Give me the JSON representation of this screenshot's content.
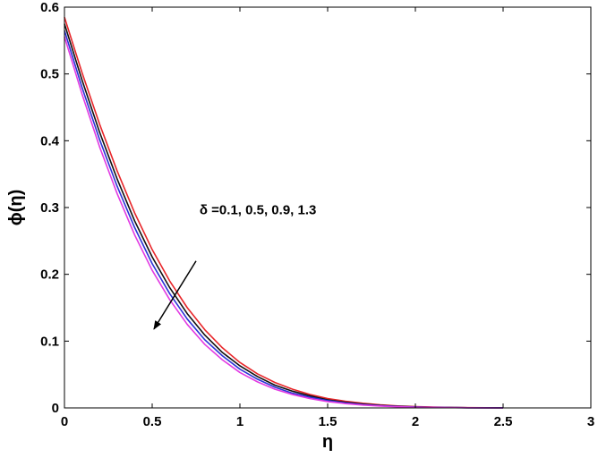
{
  "chart_data": {
    "type": "line",
    "xlabel": "η",
    "ylabel": "ϕ(η)",
    "xlim": [
      0,
      3
    ],
    "ylim": [
      0,
      0.6
    ],
    "xticks": [
      0,
      0.5,
      1,
      1.5,
      2,
      2.5,
      3
    ],
    "yticks": [
      0,
      0.1,
      0.2,
      0.3,
      0.4,
      0.5,
      0.6
    ],
    "xtick_labels": [
      "0",
      "0.5",
      "1",
      "1.5",
      "2",
      "2.5",
      "3"
    ],
    "ytick_labels": [
      "0",
      "0.1",
      "0.2",
      "0.3",
      "0.4",
      "0.5",
      "0.6"
    ],
    "grid": false,
    "legend": "none",
    "x": [
      0,
      0.1,
      0.2,
      0.3,
      0.4,
      0.5,
      0.6,
      0.7,
      0.8,
      0.9,
      1.0,
      1.1,
      1.2,
      1.3,
      1.4,
      1.5,
      1.6,
      1.7,
      1.8,
      1.9,
      2.0,
      2.1,
      2.2,
      2.3,
      2.4,
      2.5
    ],
    "series": [
      {
        "color": "#e8262a",
        "values": [
          0.585,
          0.502,
          0.425,
          0.355,
          0.292,
          0.237,
          0.19,
          0.15,
          0.117,
          0.09,
          0.068,
          0.051,
          0.038,
          0.028,
          0.02,
          0.014,
          0.01,
          0.007,
          0.0046,
          0.003,
          0.0019,
          0.0012,
          0.0007,
          0.0004,
          0.0002,
          0.0001
        ]
      },
      {
        "color": "#111111",
        "values": [
          0.575,
          0.491,
          0.413,
          0.343,
          0.28,
          0.226,
          0.18,
          0.141,
          0.109,
          0.083,
          0.063,
          0.047,
          0.034,
          0.025,
          0.018,
          0.012,
          0.0085,
          0.0058,
          0.0038,
          0.0025,
          0.0016,
          0.001,
          0.0006,
          0.0003,
          0.0002,
          0.0001
        ]
      },
      {
        "color": "#2a33d6",
        "values": [
          0.565,
          0.48,
          0.402,
          0.332,
          0.27,
          0.216,
          0.171,
          0.133,
          0.102,
          0.078,
          0.058,
          0.043,
          0.031,
          0.022,
          0.016,
          0.011,
          0.0075,
          0.005,
          0.0033,
          0.0021,
          0.0013,
          0.0008,
          0.0005,
          0.0003,
          0.0001,
          0.0001
        ]
      },
      {
        "color": "#e23ae2",
        "values": [
          0.556,
          0.47,
          0.391,
          0.321,
          0.259,
          0.206,
          0.162,
          0.125,
          0.095,
          0.072,
          0.053,
          0.039,
          0.028,
          0.02,
          0.014,
          0.0095,
          0.0065,
          0.0043,
          0.0028,
          0.0018,
          0.0011,
          0.0007,
          0.0004,
          0.0002,
          0.0001,
          0.0
        ]
      }
    ],
    "annotation": {
      "text": "δ =0.1, 0.5, 0.9, 1.3",
      "text_at": [
        0.77,
        0.29
      ],
      "arrow_from": [
        0.75,
        0.22
      ],
      "arrow_to": [
        0.51,
        0.118
      ],
      "color": "#000000"
    }
  }
}
